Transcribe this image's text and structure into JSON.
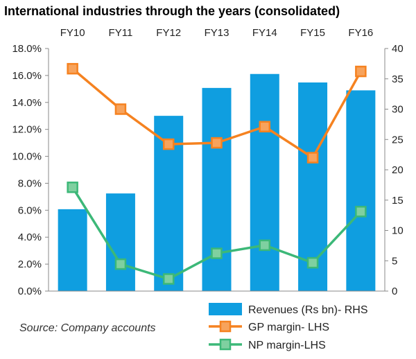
{
  "chart_data": {
    "type": "bar",
    "title": "International industries through the years (consolidated)",
    "categories": [
      "FY10",
      "FY11",
      "FY12",
      "FY13",
      "FY14",
      "FY15",
      "FY16"
    ],
    "y_left": {
      "min": 0,
      "max": 18,
      "ticks": [
        "0.0%",
        "2.0%",
        "4.0%",
        "6.0%",
        "8.0%",
        "10.0%",
        "12.0%",
        "14.0%",
        "16.0%",
        "18.0%"
      ]
    },
    "y_right": {
      "min": 0,
      "max": 40,
      "ticks": [
        "0",
        "5",
        "10",
        "15",
        "20",
        "25",
        "30",
        "35",
        "40"
      ]
    },
    "series": [
      {
        "name": "Revenues  (Rs bn)- RHS",
        "type": "bar",
        "axis": "right",
        "color": "#0f9ee0",
        "values": [
          13.5,
          16.1,
          28.9,
          33.5,
          35.8,
          34.4,
          33.1
        ]
      },
      {
        "name": "GP margin- LHS",
        "type": "line",
        "axis": "left",
        "color": "#f58220",
        "marker_fill": "#f7a35c",
        "values": [
          16.5,
          13.5,
          10.9,
          11.0,
          12.2,
          9.9,
          16.3
        ]
      },
      {
        "name": "NP margin-LHS",
        "type": "line",
        "axis": "left",
        "color": "#3cb878",
        "marker_fill": "#7fd0a0",
        "values": [
          7.7,
          2.0,
          0.9,
          2.8,
          3.4,
          2.1,
          5.9
        ]
      }
    ],
    "grid": false,
    "legend_position": "bottom-right",
    "source": "Source: Company accounts"
  }
}
